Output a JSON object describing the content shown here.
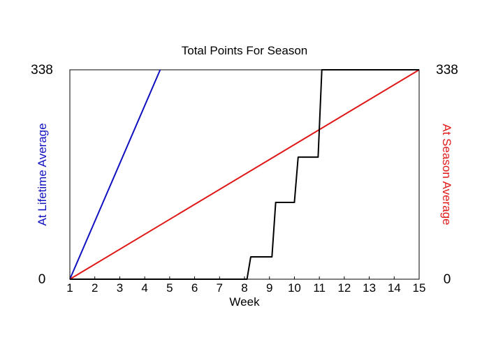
{
  "chart_data": {
    "type": "line",
    "title": "Total Points For Season",
    "xlabel": "Week",
    "ylabel_left": "At Lifetime Average",
    "ylabel_right": "At Season Average",
    "xlim": [
      1,
      15
    ],
    "ylim": [
      0,
      338
    ],
    "x_ticks": [
      "1",
      "2",
      "3",
      "4",
      "5",
      "6",
      "7",
      "8",
      "9",
      "10",
      "11",
      "12",
      "13",
      "14",
      "15"
    ],
    "y_tick_left": [
      "0",
      "338"
    ],
    "y_tick_right": [
      "0",
      "338"
    ],
    "grid": false,
    "colors": {
      "lifetime": "#1010c0",
      "season": "#e01818",
      "actual": "#000000"
    },
    "series": [
      {
        "key": "lifetime",
        "color": "#1010c0",
        "x": [
          1.0,
          4.62
        ],
        "y": [
          0,
          338
        ]
      },
      {
        "key": "season",
        "color": "#e01818",
        "x": [
          1.0,
          15.0
        ],
        "y": [
          0,
          338
        ]
      },
      {
        "key": "actual",
        "color": "#000000",
        "x": [
          1.0,
          8.1,
          8.25,
          9.1,
          9.25,
          10.0,
          10.15,
          10.95,
          11.1,
          15.0
        ],
        "y": [
          0,
          0,
          36,
          36,
          124,
          124,
          197,
          197,
          338,
          338
        ]
      }
    ]
  }
}
